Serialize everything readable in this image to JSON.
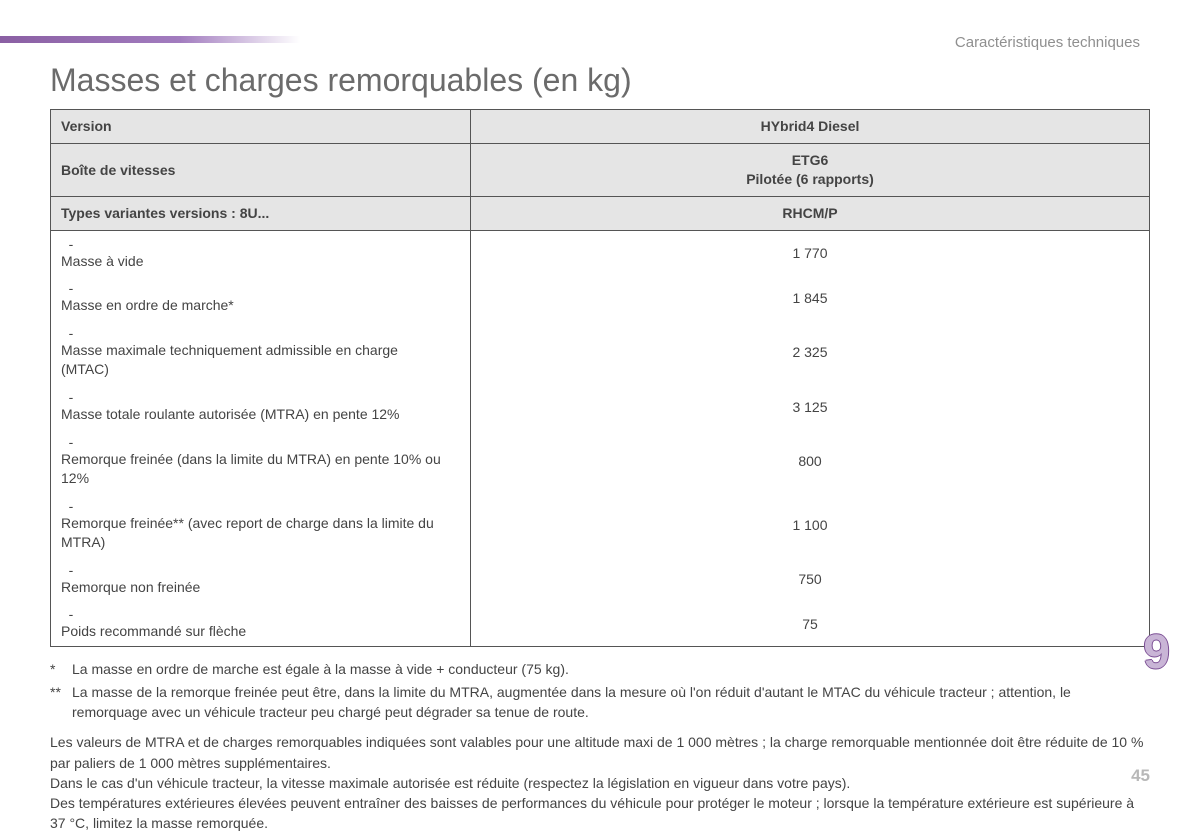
{
  "header": {
    "section_label": "Caractéristiques techniques",
    "title": "Masses et charges remorquables (en kg)"
  },
  "accent": {
    "from": "#8a5fa3",
    "to_transparent": true
  },
  "table": {
    "header_rows": [
      {
        "left": "Version",
        "right": "HYbrid4 Diesel"
      },
      {
        "left": "Boîte de vitesses",
        "right": "ETG6\nPilotée (6 rapports)"
      },
      {
        "left": "Types variantes versions : 8U...",
        "right": "RHCM/P"
      }
    ],
    "rows": [
      {
        "label": "Masse à vide",
        "value": "1 770"
      },
      {
        "label": "Masse en ordre de marche*",
        "value": "1 845"
      },
      {
        "label": "Masse maximale techniquement admissible en charge (MTAC)",
        "value": "2 325"
      },
      {
        "label": "Masse totale roulante autorisée (MTRA) en pente 12%",
        "value": "3 125"
      },
      {
        "label": "Remorque freinée (dans la limite du MTRA) en pente 10% ou 12%",
        "value": "800"
      },
      {
        "label": "Remorque freinée** (avec report de charge dans la limite du MTRA)",
        "value": "1 100"
      },
      {
        "label": "Remorque non freinée",
        "value": "750"
      },
      {
        "label": "Poids recommandé sur flèche",
        "value": "75"
      }
    ]
  },
  "footnotes": {
    "star1_mark": "*",
    "star1": "La masse en ordre de marche est égale à la masse à vide + conducteur (75 kg).",
    "star2_mark": "**",
    "star2": "La masse de la remorque freinée peut être, dans la limite du MTRA, augmentée dans la mesure où l'on réduit d'autant le MTAC du véhicule tracteur ; attention, le remorquage avec un véhicule tracteur peu chargé peut dégrader sa tenue de route."
  },
  "body_notes": [
    "Les valeurs de MTRA et de charges remorquables indiquées sont valables pour une altitude maxi de 1 000 mètres ; la charge remorquable mentionnée doit être réduite de 10 % par paliers de 1 000 mètres supplémentaires.",
    "Dans le cas d'un véhicule tracteur, la vitesse maximale autorisée est réduite (respectez la législation en vigueur dans votre pays).",
    "Des températures extérieures élevées peuvent entraîner des baisses de performances du véhicule pour protéger le moteur ; lorsque la température extérieure est supérieure à 37 °C, limitez la masse remorquée."
  ],
  "chapter_number": "9",
  "page_number": "45"
}
